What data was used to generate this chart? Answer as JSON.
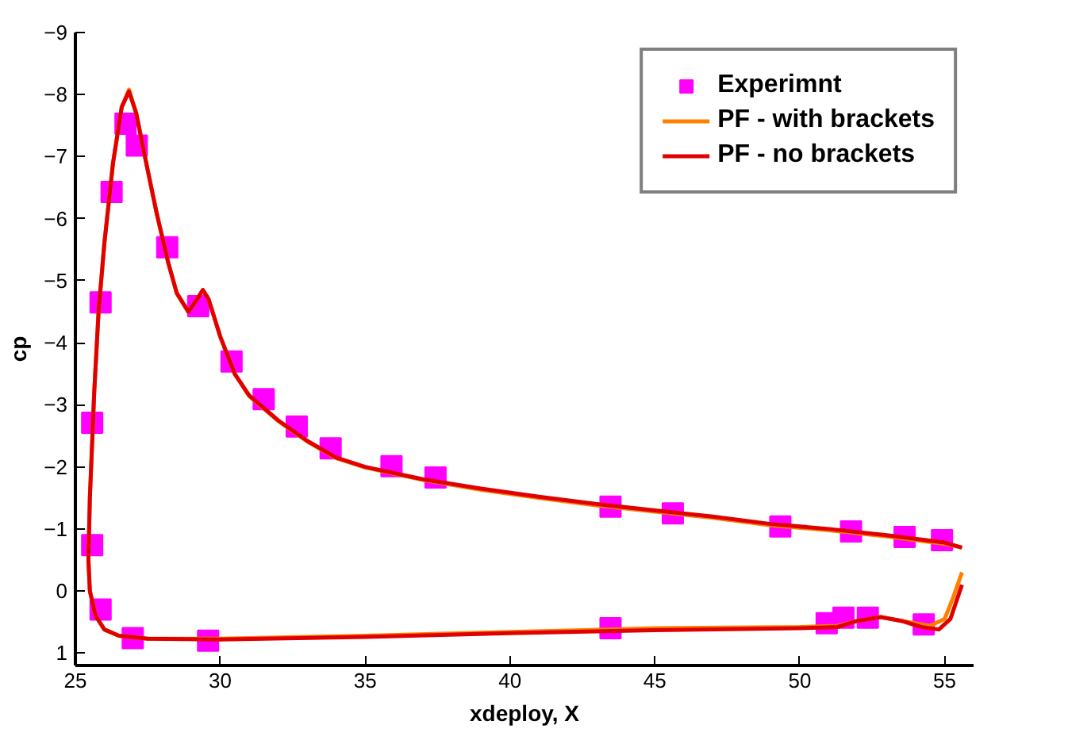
{
  "chart_data": {
    "type": "line",
    "xlabel": "xdeploy, X",
    "ylabel": "cp",
    "xlim": [
      25,
      56
    ],
    "ylim": [
      1.2,
      -9
    ],
    "xticks": [
      25,
      30,
      35,
      40,
      45,
      50,
      55
    ],
    "yticks": [
      1,
      0,
      -1,
      -2,
      -3,
      -4,
      -5,
      -6,
      -7,
      -8,
      -9
    ],
    "grid": false,
    "legend": "top right",
    "series": [
      {
        "name": "Experimnt",
        "type": "scatter",
        "marker": "square",
        "color": "#ff00ff",
        "x": [
          25.58,
          25.58,
          25.87,
          25.87,
          26.25,
          26.73,
          27.12,
          28.17,
          29.24,
          30.39,
          31.5,
          32.64,
          33.81,
          35.91,
          37.43,
          43.47,
          45.62,
          49.33,
          51.77,
          53.62,
          54.91,
          26.98,
          29.58,
          43.47,
          50.93,
          51.51,
          52.35,
          54.28
        ],
        "values": [
          -2.71,
          -0.74,
          0.3,
          -4.65,
          -6.43,
          -7.53,
          -7.18,
          -5.54,
          -4.59,
          -3.7,
          -3.09,
          -2.65,
          -2.3,
          -2.01,
          -1.83,
          -1.36,
          -1.25,
          -1.04,
          -0.96,
          -0.87,
          -0.82,
          0.76,
          0.8,
          0.6,
          0.52,
          0.43,
          0.43,
          0.54
        ]
      },
      {
        "name": "PF - with brackets",
        "line_style": "solid",
        "color": "#ff8000",
        "x": [
          55.6,
          55,
          53,
          51,
          49,
          47,
          45,
          43,
          41,
          39,
          37,
          35,
          34,
          33,
          32,
          31,
          30.5,
          30,
          29.6,
          29.4,
          29.2,
          28.9,
          28.5,
          28.2,
          27.8,
          27.4,
          27.1,
          26.85,
          26.6,
          26.3,
          26,
          25.8,
          25.65,
          25.5,
          25.45,
          25.5,
          25.7,
          26,
          26.5,
          27.5,
          30,
          35,
          40,
          45,
          50,
          51.3,
          52,
          52.8,
          53.5,
          54.5,
          55,
          55.3,
          55.6
        ],
        "values": [
          -0.7,
          -0.76,
          -0.88,
          -0.98,
          -1.06,
          -1.18,
          -1.28,
          -1.38,
          -1.5,
          -1.63,
          -1.79,
          -1.99,
          -2.14,
          -2.41,
          -2.74,
          -3.14,
          -3.5,
          -4.1,
          -4.7,
          -4.85,
          -4.7,
          -4.5,
          -4.8,
          -5.3,
          -6.1,
          -7,
          -7.7,
          -8.08,
          -7.8,
          -6.9,
          -5.6,
          -4.5,
          -3.2,
          -1.5,
          -0.5,
          0,
          0.4,
          0.62,
          0.72,
          0.77,
          0.77,
          0.72,
          0.66,
          0.6,
          0.58,
          0.56,
          0.48,
          0.42,
          0.48,
          0.56,
          0.45,
          0.1,
          -0.3
        ]
      },
      {
        "name": "PF - no brackets",
        "line_style": "solid",
        "color": "#e00000",
        "x": [
          55.6,
          55,
          53,
          51,
          49,
          47,
          45,
          43,
          41,
          39,
          37,
          35,
          34,
          33,
          32,
          31,
          30.5,
          30,
          29.6,
          29.4,
          29.2,
          28.9,
          28.5,
          28.2,
          27.8,
          27.4,
          27.1,
          26.85,
          26.6,
          26.3,
          26,
          25.8,
          25.65,
          25.5,
          25.45,
          25.5,
          25.7,
          26,
          26.5,
          27.5,
          30,
          35,
          40,
          45,
          50,
          51.3,
          52,
          52.8,
          53.5,
          54.2,
          54.8,
          55.2,
          55.6
        ],
        "values": [
          -0.7,
          -0.78,
          -0.9,
          -1,
          -1.08,
          -1.2,
          -1.3,
          -1.4,
          -1.52,
          -1.65,
          -1.8,
          -2,
          -2.15,
          -2.42,
          -2.75,
          -3.15,
          -3.5,
          -4.1,
          -4.7,
          -4.85,
          -4.7,
          -4.5,
          -4.8,
          -5.3,
          -6.1,
          -7,
          -7.7,
          -8.05,
          -7.8,
          -6.9,
          -5.6,
          -4.5,
          -3.2,
          -1.5,
          -0.5,
          0,
          0.4,
          0.62,
          0.72,
          0.77,
          0.78,
          0.74,
          0.68,
          0.63,
          0.6,
          0.58,
          0.48,
          0.42,
          0.48,
          0.58,
          0.62,
          0.45,
          -0.1
        ]
      }
    ]
  }
}
